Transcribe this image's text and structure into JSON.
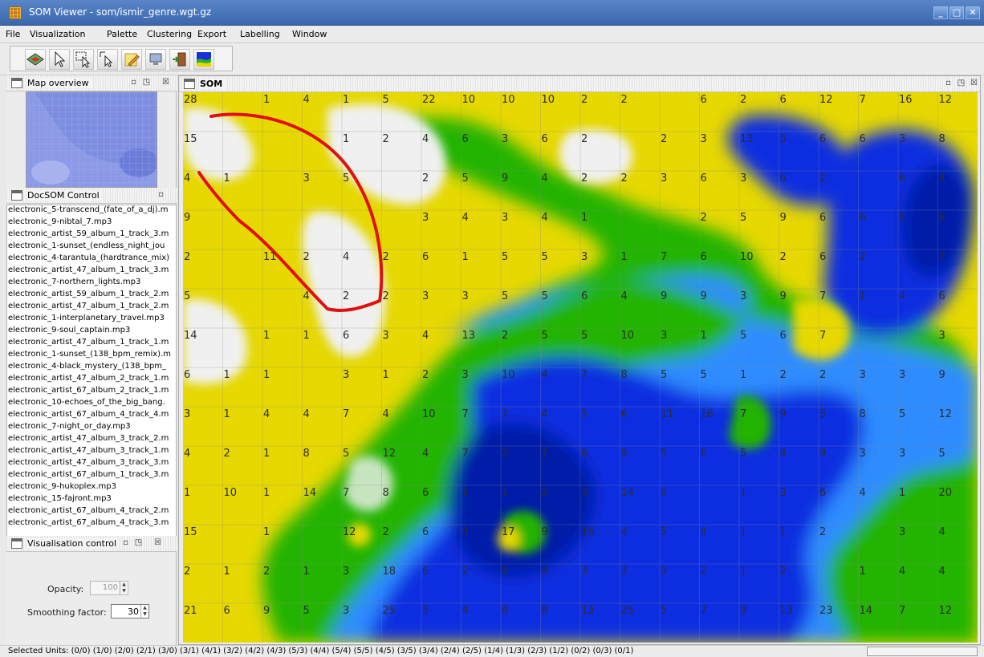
{
  "window": {
    "title": "SOM Viewer - som/ismir_genre.wgt.gz",
    "minimize": "_",
    "maximize": "□",
    "close": "✕"
  },
  "menu": [
    "File",
    "Visualization",
    "Palette",
    "Clustering",
    "Export",
    "Labelling",
    "Window"
  ],
  "toolbar": [
    "layer-icon",
    "pointer-select-icon",
    "rectangle-select-icon",
    "cluster-select-icon",
    "pencil-icon",
    "monitor-icon",
    "exit-door-icon",
    "palette-image-icon"
  ],
  "panels": {
    "map_overview": {
      "title": "Map overview"
    },
    "docsom": {
      "title": "DocSOM Control",
      "items": [
        "electronic_5-transcend_(fate_of_a_dj).m",
        "electronic_9-nibtal_7.mp3",
        "electronic_artist_59_album_1_track_3.m",
        "electronic_1-sunset_(endless_night_jou",
        "electronic_4-tarantula_(hardtrance_mix)",
        "electronic_artist_47_album_1_track_3.m",
        "electronic_7-northern_lights.mp3",
        "electronic_artist_59_album_1_track_2.m",
        "electronic_artist_47_album_1_track_2.m",
        "electronic_1-interplanetary_travel.mp3",
        "electronic_9-soul_captain.mp3",
        "electronic_artist_47_album_1_track_1.m",
        "electronic_1-sunset_(138_bpm_remix).m",
        "electronic_4-black_mystery_(138_bpm_",
        "electronic_artist_47_album_2_track_1.m",
        "electronic_artist_67_album_2_track_1.m",
        "electronic_10-echoes_of_the_big_bang.",
        "electronic_artist_67_album_4_track_4.m",
        "electronic_7-night_or_day.mp3",
        "electronic_artist_47_album_3_track_2.m",
        "electronic_artist_47_album_3_track_1.m",
        "electronic_artist_47_album_3_track_3.m",
        "electronic_artist_67_album_1_track_3.m",
        "electronic_9-hukoplex.mp3",
        "electronic_15-fajront.mp3",
        "electronic_artist_67_album_4_track_2.m",
        "electronic_artist_67_album_4_track_3.m"
      ]
    },
    "vis_control": {
      "title": "Visualisation control",
      "opacity_label": "Opacity:",
      "opacity_value": "100",
      "smoothing_label": "Smoothing factor:",
      "smoothing_value": "30"
    }
  },
  "som": {
    "title": "SOM",
    "counts": [
      [
        "28",
        "",
        "1",
        "4",
        "1",
        "5",
        "22",
        "10",
        "10",
        "10",
        "2",
        "2",
        "",
        "6",
        "2",
        "6",
        "12",
        "7",
        "16",
        "12"
      ],
      [
        "15",
        "",
        "",
        "",
        "1",
        "2",
        "4",
        "6",
        "3",
        "6",
        "2",
        "",
        "2",
        "3",
        "13",
        "5",
        "6",
        "6",
        "3",
        "8"
      ],
      [
        "4",
        "1",
        "",
        "3",
        "5",
        "",
        "2",
        "5",
        "9",
        "4",
        "2",
        "2",
        "3",
        "6",
        "3",
        "6",
        "2",
        "",
        "6",
        "4"
      ],
      [
        "9",
        "",
        "",
        "",
        "",
        "",
        "3",
        "4",
        "3",
        "4",
        "1",
        "",
        "",
        "2",
        "5",
        "9",
        "6",
        "6",
        "5",
        "6"
      ],
      [
        "2",
        "",
        "11",
        "2",
        "4",
        "2",
        "6",
        "1",
        "5",
        "5",
        "3",
        "1",
        "7",
        "6",
        "10",
        "2",
        "6",
        "2",
        "",
        "7"
      ],
      [
        "5",
        "",
        "",
        "4",
        "2",
        "2",
        "3",
        "3",
        "5",
        "5",
        "6",
        "4",
        "9",
        "9",
        "3",
        "9",
        "7",
        "1",
        "4",
        "6"
      ],
      [
        "14",
        "",
        "1",
        "1",
        "6",
        "3",
        "4",
        "13",
        "2",
        "5",
        "5",
        "10",
        "3",
        "1",
        "5",
        "6",
        "7",
        "",
        "",
        "3"
      ],
      [
        "6",
        "1",
        "1",
        "",
        "3",
        "1",
        "2",
        "3",
        "10",
        "4",
        "7",
        "8",
        "5",
        "5",
        "1",
        "2",
        "2",
        "3",
        "3",
        "9"
      ],
      [
        "3",
        "1",
        "4",
        "4",
        "7",
        "4",
        "10",
        "7",
        "7",
        "4",
        "5",
        "6",
        "11",
        "16",
        "7",
        "9",
        "5",
        "8",
        "5",
        "12"
      ],
      [
        "4",
        "2",
        "1",
        "8",
        "5",
        "12",
        "4",
        "7",
        "2",
        "7",
        "6",
        "9",
        "5",
        "6",
        "5",
        "4",
        "9",
        "3",
        "3",
        "5"
      ],
      [
        "1",
        "10",
        "1",
        "14",
        "7",
        "8",
        "6",
        "3",
        "1",
        "2",
        "3",
        "14",
        "9",
        "",
        "1",
        "3",
        "6",
        "4",
        "1",
        "20"
      ],
      [
        "15",
        "",
        "1",
        "",
        "12",
        "2",
        "6",
        "8",
        "17",
        "9",
        "16",
        "4",
        "5",
        "4",
        "1",
        "1",
        "2",
        "",
        "3",
        "4"
      ],
      [
        "2",
        "1",
        "2",
        "1",
        "3",
        "18",
        "6",
        "2",
        "8",
        "4",
        "3",
        "3",
        "9",
        "2",
        "1",
        "2",
        "",
        "1",
        "4",
        "4"
      ],
      [
        "21",
        "6",
        "9",
        "5",
        "3",
        "25",
        "5",
        "4",
        "8",
        "8",
        "13",
        "25",
        "5",
        "7",
        "9",
        "13",
        "23",
        "14",
        "7",
        "12"
      ]
    ]
  },
  "status": {
    "text": "Selected Units: (0/0) (1/0) (2/0) (2/1) (3/0) (3/1) (4/1) (3/2) (4/2) (4/3) (5/3) (4/4) (5/4) (5/5) (4/5) (3/5) (3/4) (2/4) (2/5) (1/4) (1/3) (2/3) (1/2) (0/2) (0/3) (0/1)"
  },
  "colors": {
    "white": "#f0f0f0",
    "yellow": "#e6d800",
    "green": "#24b400",
    "lightblue": "#2d8cff",
    "blue": "#0a2fe0",
    "darkblue": "#001ca8",
    "selection": "#e01010"
  }
}
